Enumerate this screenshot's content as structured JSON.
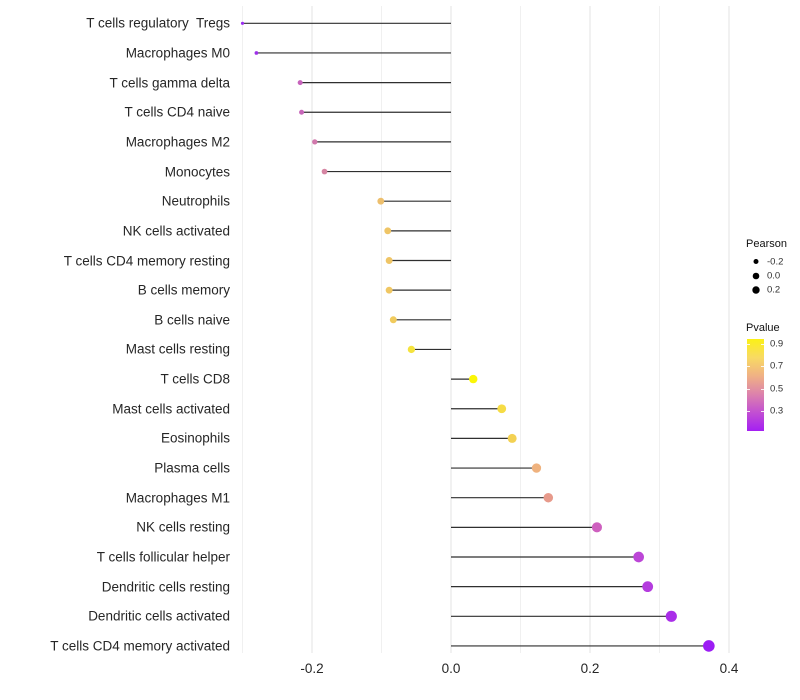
{
  "chart_data": {
    "type": "scatter",
    "variant": "horizontal-lollipop",
    "title": "",
    "xlabel": "",
    "ylabel": "",
    "x_tick_labels": [
      "-0.2",
      "0.0",
      "0.2",
      "0.4"
    ],
    "x_tick_values": [
      -0.2,
      0.0,
      0.2,
      0.4
    ],
    "x_minor_gridline_values": [
      -0.3,
      -0.1,
      0.1,
      0.3
    ],
    "xlim": [
      -0.31,
      0.42
    ],
    "baseline": 0.0,
    "grid": "vertical-only",
    "stem_color": "#2f2f2f",
    "points": [
      {
        "label": "T cells regulatory  Tregs",
        "pearson": -0.3,
        "pvalue": 0.15,
        "color": "#9B2DF0",
        "size": 3.2
      },
      {
        "label": "Macrophages M0",
        "pearson": -0.28,
        "pvalue": 0.18,
        "color": "#9E30E8",
        "size": 3.7
      },
      {
        "label": "T cells gamma delta",
        "pearson": -0.217,
        "pvalue": 0.38,
        "color": "#C763BC",
        "size": 5.0
      },
      {
        "label": "T cells CD4 naive",
        "pearson": -0.215,
        "pvalue": 0.39,
        "color": "#C766B9",
        "size": 5.0
      },
      {
        "label": "Macrophages M2",
        "pearson": -0.196,
        "pvalue": 0.44,
        "color": "#D178AC",
        "size": 5.3
      },
      {
        "label": "Monocytes",
        "pearson": -0.182,
        "pvalue": 0.48,
        "color": "#D685A3",
        "size": 5.7
      },
      {
        "label": "Neutrophils",
        "pearson": -0.101,
        "pvalue": 0.68,
        "color": "#EDBF6D",
        "size": 6.8
      },
      {
        "label": "NK cells activated",
        "pearson": -0.091,
        "pvalue": 0.7,
        "color": "#EFC566",
        "size": 6.9
      },
      {
        "label": "T cells CD4 memory resting",
        "pearson": -0.089,
        "pvalue": 0.7,
        "color": "#EFC566",
        "size": 6.9
      },
      {
        "label": "B cells memory",
        "pearson": -0.089,
        "pvalue": 0.7,
        "color": "#F0C763",
        "size": 6.9
      },
      {
        "label": "B cells naive",
        "pearson": -0.083,
        "pvalue": 0.72,
        "color": "#F1CB5D",
        "size": 7.0
      },
      {
        "label": "Mast cells resting",
        "pearson": -0.057,
        "pvalue": 0.82,
        "color": "#F5E33E",
        "size": 7.3
      },
      {
        "label": "T cells CD8",
        "pearson": 0.032,
        "pvalue": 0.92,
        "color": "#FBF607",
        "size": 8.4
      },
      {
        "label": "Mast cells activated",
        "pearson": 0.073,
        "pvalue": 0.8,
        "color": "#F6DC45",
        "size": 8.8
      },
      {
        "label": "Eosinophils",
        "pearson": 0.088,
        "pvalue": 0.76,
        "color": "#F3D153",
        "size": 9.0
      },
      {
        "label": "Plasma cells",
        "pearson": 0.123,
        "pvalue": 0.64,
        "color": "#EFB27E",
        "size": 9.3
      },
      {
        "label": "Macrophages M1",
        "pearson": 0.14,
        "pvalue": 0.57,
        "color": "#E79A8B",
        "size": 9.5
      },
      {
        "label": "NK cells resting",
        "pearson": 0.21,
        "pvalue": 0.4,
        "color": "#CE60BF",
        "size": 10.1
      },
      {
        "label": "T cells follicular helper",
        "pearson": 0.27,
        "pvalue": 0.3,
        "color": "#BC46D7",
        "size": 10.7
      },
      {
        "label": "Dendritic cells resting",
        "pearson": 0.283,
        "pvalue": 0.27,
        "color": "#B43CDE",
        "size": 10.8
      },
      {
        "label": "Dendritic cells activated",
        "pearson": 0.317,
        "pvalue": 0.22,
        "color": "#AA2EE9",
        "size": 11.2
      },
      {
        "label": "T cells CD4 memory activated",
        "pearson": 0.371,
        "pvalue": 0.16,
        "color": "#9C1DF4",
        "size": 11.6
      }
    ],
    "legend_size": {
      "title": "Pearson",
      "dot_color": "#000000",
      "entries": [
        {
          "label": "-0.2",
          "diameter": 5.0
        },
        {
          "label": "0.0",
          "diameter": 6.6
        },
        {
          "label": "0.2",
          "diameter": 7.4
        }
      ]
    },
    "legend_color": {
      "title": "Pvalue",
      "tick_labels": [
        "0.9",
        "0.7",
        "0.5",
        "0.3"
      ],
      "gradient_top_to_bottom": [
        "#FBF116",
        "#F8DA63",
        "#F0B184",
        "#DC82AC",
        "#C24FD2",
        "#A41FF3"
      ]
    },
    "colors": {
      "major_gridline": "#e3e3e3",
      "minor_gridline": "#f0f0f0",
      "axis_text": "#262626",
      "background": "#ffffff"
    }
  }
}
